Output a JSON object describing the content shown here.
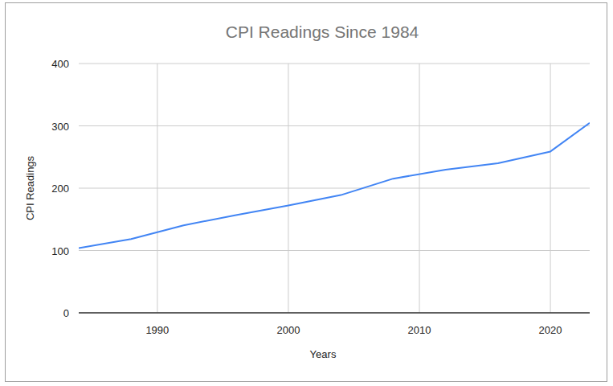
{
  "chart_data": {
    "type": "line",
    "title": "CPI Readings Since 1984",
    "x_label": "Years",
    "y_label": "CPI Readings",
    "x": [
      1984,
      1988,
      1992,
      1996,
      2000,
      2004,
      2008,
      2012,
      2016,
      2020,
      2023
    ],
    "values": [
      103.9,
      118.3,
      140.3,
      156.9,
      172.2,
      188.9,
      215.3,
      229.6,
      240.0,
      258.8,
      304.7
    ],
    "color": "#4285f4",
    "xlim": [
      1984,
      2023
    ],
    "xticks": [
      1990,
      2000,
      2010,
      2020
    ],
    "ylim": [
      0,
      400
    ],
    "yticks": [
      0,
      100,
      200,
      300,
      400
    ],
    "grid": true
  }
}
